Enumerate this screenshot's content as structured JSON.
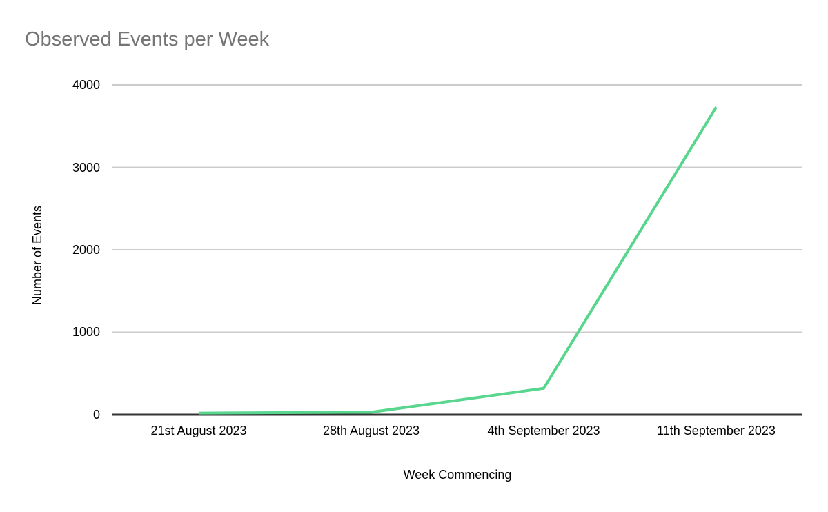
{
  "chart_data": {
    "type": "line",
    "title": "Observed Events per Week",
    "xlabel": "Week Commencing",
    "ylabel": "Number of Events",
    "categories": [
      "21st August 2023",
      "28th August 2023",
      "4th September 2023",
      "11th September 2023"
    ],
    "series": [
      {
        "name": "Number of Events",
        "values": [
          20,
          30,
          320,
          3730
        ]
      }
    ],
    "ylim": [
      0,
      4000
    ],
    "yticks": [
      0,
      1000,
      2000,
      3000,
      4000
    ],
    "grid": true,
    "legend_position": "none"
  },
  "colors": {
    "title_text": "#757575",
    "axis_text": "#000000",
    "gridline": "#cccccc",
    "axis_line": "#333333",
    "series_line": "#58d68d",
    "background": "#ffffff"
  }
}
